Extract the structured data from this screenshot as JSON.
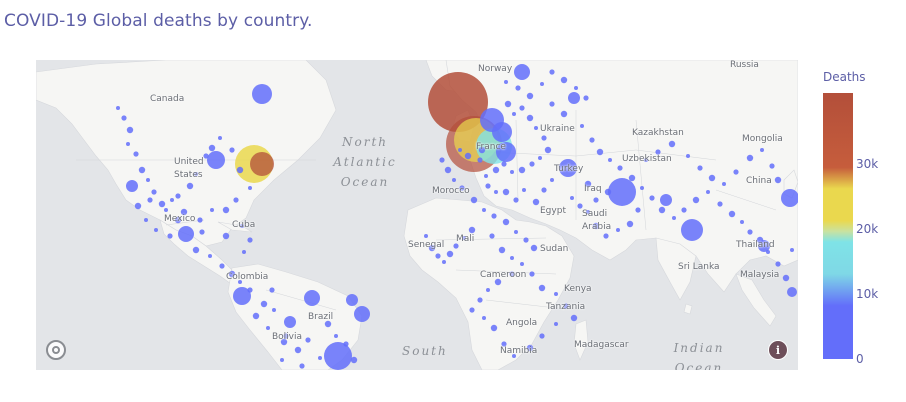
{
  "title": "COVID-19 Global deaths by country.",
  "colorbar": {
    "title": "Deaths",
    "ticks": [
      {
        "label": "30k",
        "value": 30000
      },
      {
        "label": "20k",
        "value": 20000
      },
      {
        "label": "10k",
        "value": 10000
      },
      {
        "label": "0",
        "value": 0
      }
    ],
    "max": 41000,
    "colors": [
      "#636efa",
      "#7fe3e7",
      "#ead84e",
      "#b34f3a"
    ]
  },
  "places": {
    "countries": [
      "Norway",
      "Russia",
      "Canada",
      "Ukraine",
      "Kazakhstan",
      "Mongolia",
      "United States",
      "France",
      "Uzbekistan",
      "Turkey",
      "Iraq",
      "China",
      "Morocco",
      "Mexico",
      "Egypt",
      "Saudi Arabia",
      "Cuba",
      "Senegal",
      "Mali",
      "Sudan",
      "Thailand",
      "Colombia",
      "Cameroon",
      "Sri Lanka",
      "Malaysia",
      "Kenya",
      "Tanzania",
      "Brazil",
      "Angola",
      "Bolivia",
      "Namibia",
      "Madagascar"
    ],
    "oceans": [
      "North Atlantic Ocean",
      "South",
      "Indian Ocean"
    ]
  },
  "icons": {
    "logo": "mapbox-logo-icon",
    "info": "info-icon"
  }
}
